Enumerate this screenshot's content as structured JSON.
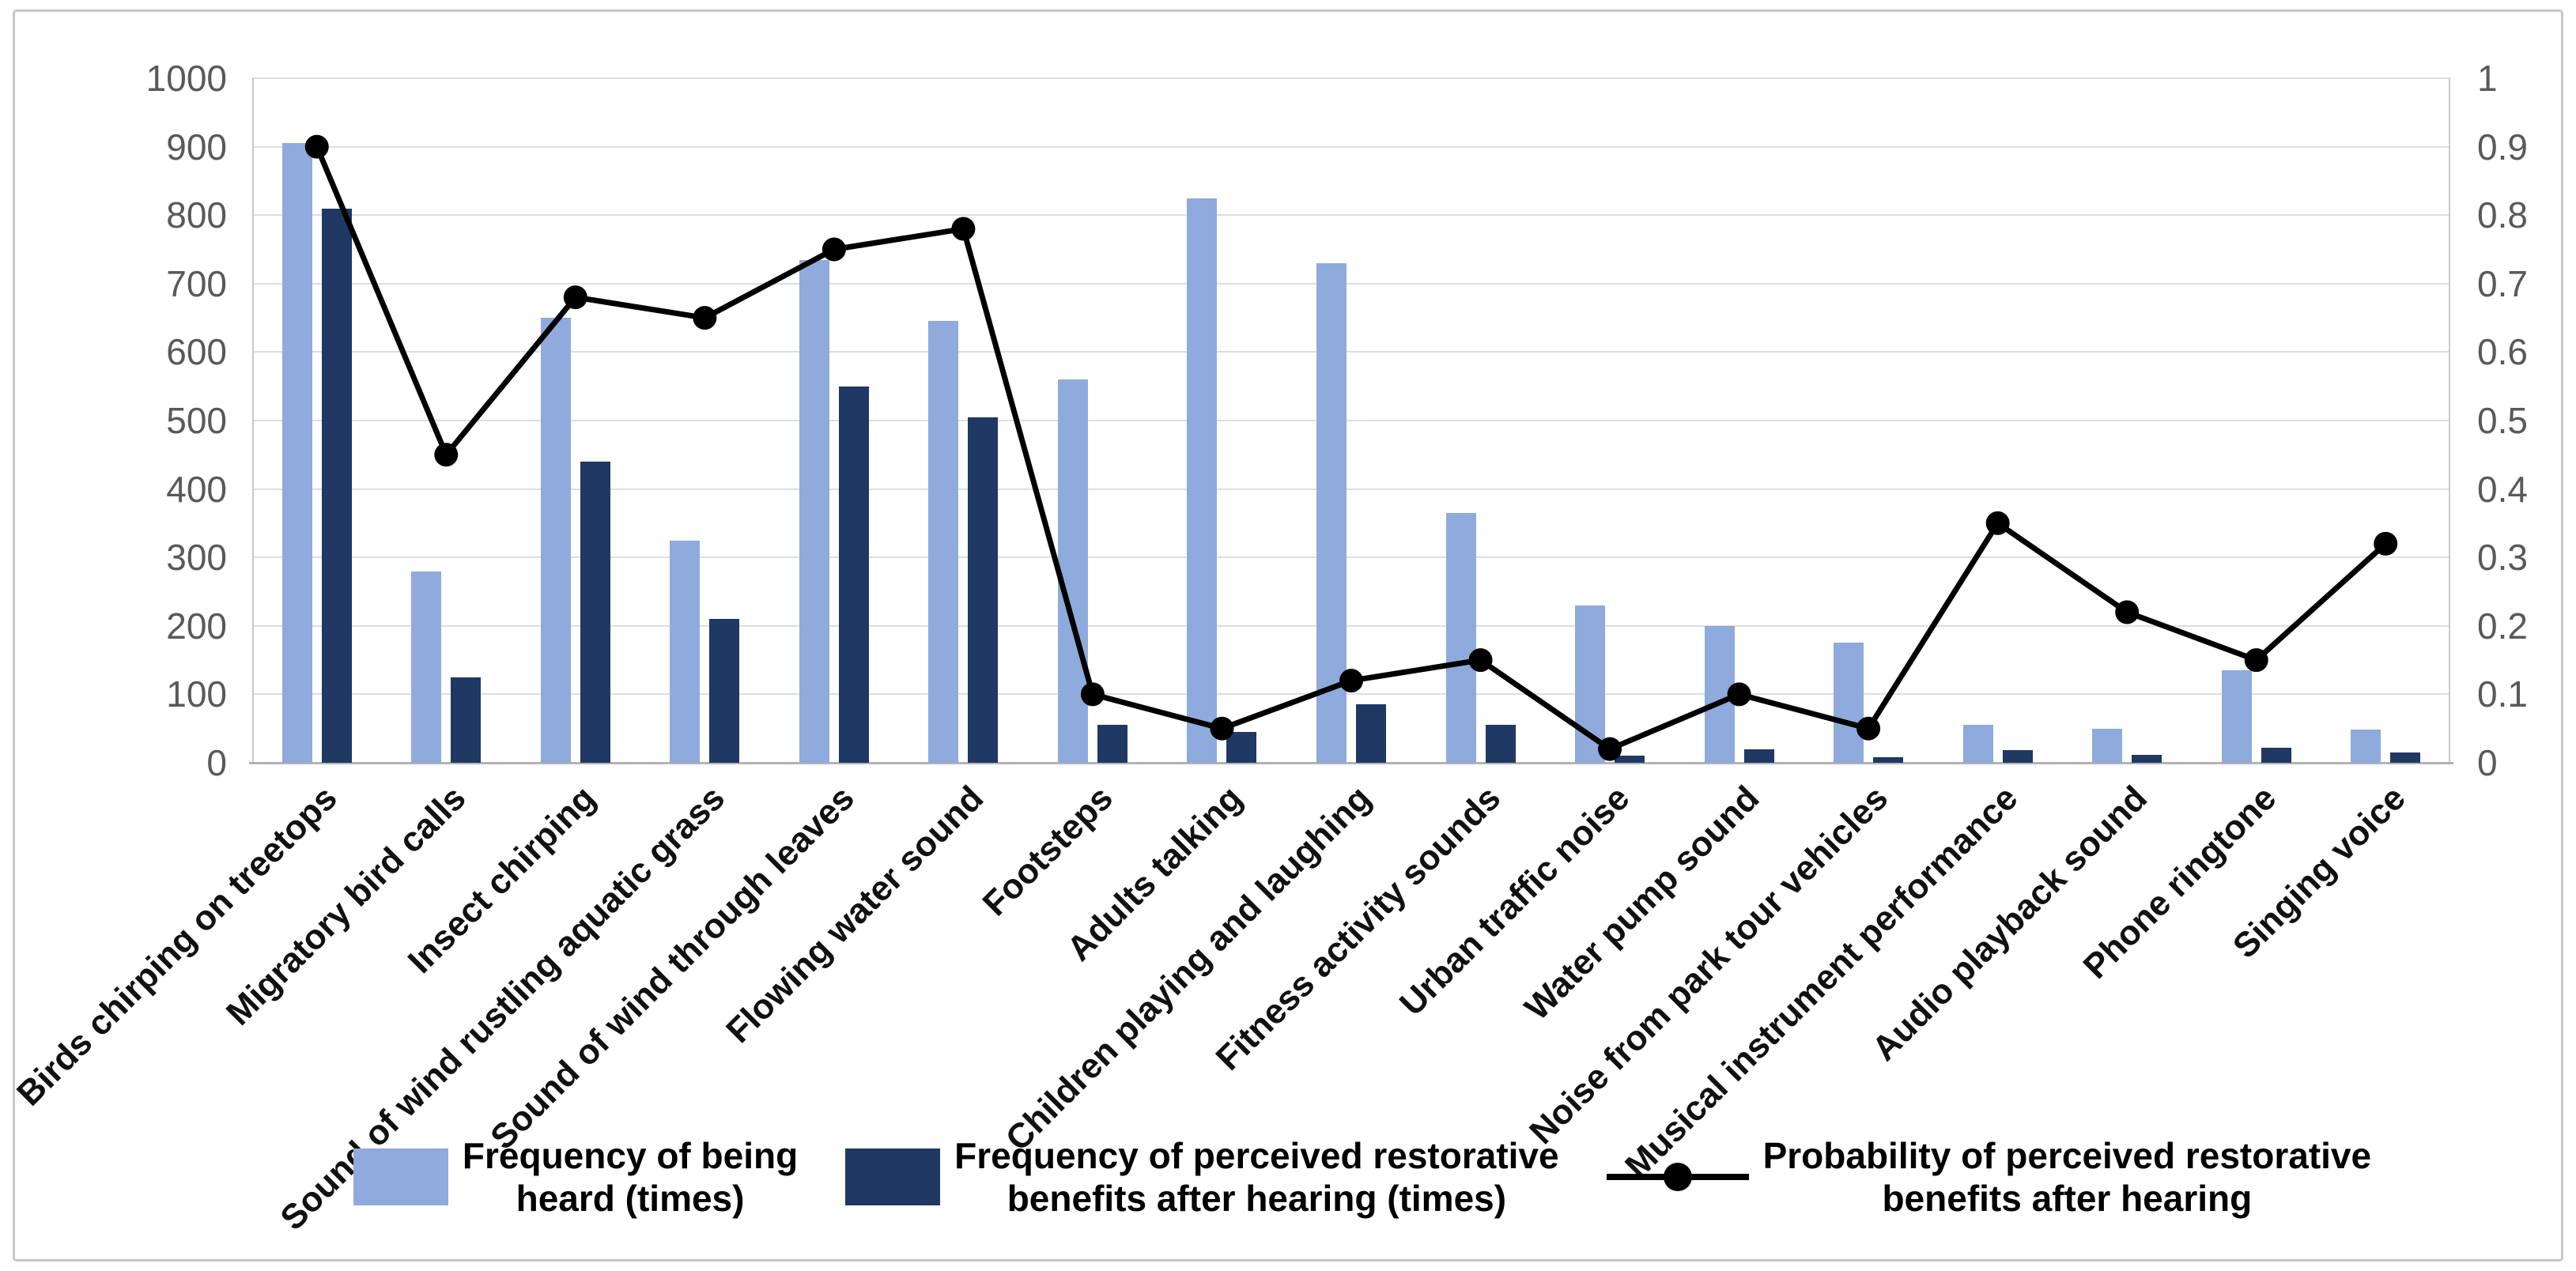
{
  "chart_data": {
    "type": "bar+line combo",
    "title": "",
    "categories": [
      "Birds chirping on treetops",
      "Migratory bird calls",
      "Insect chirping",
      "Sound of wind rustling aquatic grass",
      "Sound of wind through leaves",
      "Flowing water sound",
      "Footsteps",
      "Adults talking",
      "Children playing and laughing",
      "Fitness activity sounds",
      "Urban traffic noise",
      "Water pump sound",
      "Noise from park tour vehicles",
      "Musical instrument performance",
      "Audio playback sound",
      "Phone ringtone",
      "Singing voice"
    ],
    "series": [
      {
        "name": "Frequency of being heard (times)",
        "type": "bar",
        "axis": "left",
        "color": "#8faadc",
        "values": [
          905,
          280,
          650,
          325,
          735,
          645,
          560,
          825,
          730,
          365,
          230,
          200,
          175,
          55,
          50,
          135,
          48
        ]
      },
      {
        "name": "Frequency of perceived restorative benefits after hearing (times)",
        "type": "bar",
        "axis": "left",
        "color": "#1f3864",
        "values": [
          810,
          125,
          440,
          210,
          550,
          505,
          55,
          45,
          85,
          55,
          10,
          20,
          8,
          18,
          12,
          22,
          15
        ]
      },
      {
        "name": "Probability of perceived restorative benefits after hearing",
        "type": "line",
        "axis": "right",
        "color": "#000000",
        "values": [
          0.9,
          0.45,
          0.68,
          0.65,
          0.75,
          0.78,
          0.1,
          0.05,
          0.12,
          0.15,
          0.02,
          0.1,
          0.05,
          0.35,
          0.22,
          0.15,
          0.32
        ]
      }
    ],
    "left_axis": {
      "min": 0,
      "max": 1000,
      "step": 100,
      "tick_labels": [
        "0",
        "100",
        "200",
        "300",
        "400",
        "500",
        "600",
        "700",
        "800",
        "900",
        "1000"
      ]
    },
    "right_axis": {
      "min": 0,
      "max": 1,
      "step": 0.1,
      "tick_labels": [
        "0",
        "0.1",
        "0.2",
        "0.3",
        "0.4",
        "0.5",
        "0.6",
        "0.7",
        "0.8",
        "0.9",
        "1"
      ]
    },
    "grid": true,
    "legend_position": "bottom",
    "legend": [
      {
        "marker": "swatch-light",
        "label": "Frequency of being\nheard (times)"
      },
      {
        "marker": "swatch-dark",
        "label": "Frequency of perceived restorative\nbenefits after hearing (times)"
      },
      {
        "marker": "line-dot",
        "label": "Probability of perceived restorative\nbenefits after hearing"
      }
    ]
  },
  "colors": {
    "bar_light": "#8faadc",
    "bar_dark": "#1f3864",
    "line": "#000000",
    "gridline": "#dedede",
    "axis_line": "#c9c9c9",
    "tick_text": "#595959",
    "figure_border": "#c6c6c6",
    "background": "#ffffff"
  }
}
